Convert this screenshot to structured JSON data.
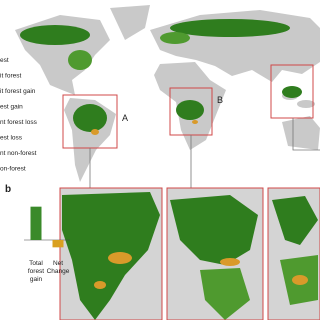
{
  "legend": [
    "est",
    "it forest",
    "it forest gain",
    "est gain",
    "nt forest loss",
    "est loss",
    "nt non-forest",
    "on-forest"
  ],
  "map_labels": {
    "a": "A",
    "b": "B"
  },
  "chart_data": {
    "type": "bar",
    "panel_label": "b",
    "categories": [
      [
        "Total",
        "forest",
        "gain"
      ],
      [
        "Net",
        "Change"
      ]
    ],
    "values": [
      100,
      -22
    ],
    "colors": [
      "#3a8a2a",
      "#d9a020"
    ],
    "ylim": [
      -30,
      120
    ]
  }
}
